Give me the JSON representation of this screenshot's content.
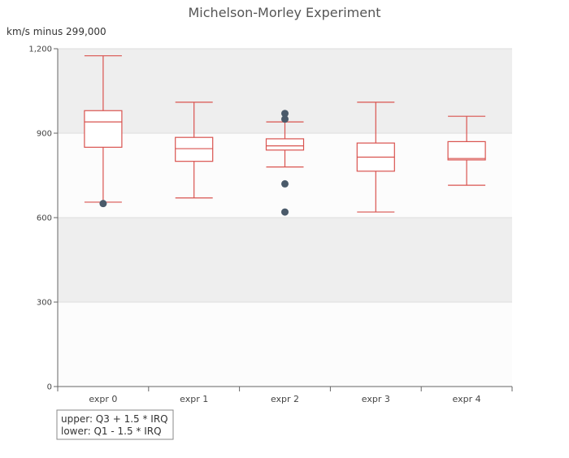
{
  "chart_data": {
    "type": "boxplot",
    "title": "Michelson-Morley Experiment",
    "ylabel": "km/s minus 299,000",
    "ylim": [
      0,
      1200
    ],
    "yticks": [
      0,
      300,
      600,
      900,
      1200
    ],
    "ytick_labels": [
      "0",
      "300",
      "600",
      "900",
      "1,200"
    ],
    "grid": "alternating horizontal bands",
    "categories": [
      "expr 0",
      "expr 1",
      "expr 2",
      "expr 3",
      "expr 4"
    ],
    "boxes": [
      {
        "category": "expr 0",
        "low": 655,
        "q1": 850,
        "median": 940,
        "q3": 980,
        "high": 1175,
        "outliers": [
          650
        ]
      },
      {
        "category": "expr 1",
        "low": 670,
        "q1": 800,
        "median": 845,
        "q3": 885,
        "high": 1010,
        "outliers": []
      },
      {
        "category": "expr 2",
        "low": 780,
        "q1": 840,
        "median": 855,
        "q3": 880,
        "high": 940,
        "outliers": [
          970,
          950,
          720,
          620
        ]
      },
      {
        "category": "expr 3",
        "low": 620,
        "q1": 765,
        "median": 815,
        "q3": 865,
        "high": 1010,
        "outliers": []
      },
      {
        "category": "expr 4",
        "low": 715,
        "q1": 805,
        "median": 810,
        "q3": 870,
        "high": 960,
        "outliers": []
      }
    ],
    "note_lines": [
      "upper: Q3 + 1.5 * IRQ",
      "lower: Q1 - 1.5 * IRQ"
    ],
    "colors": {
      "box": "#d9534f",
      "outlier": "#4a5a6a",
      "band_dark": "#eeeeee",
      "band_light": "#fcfcfc",
      "axis": "#666666"
    }
  }
}
